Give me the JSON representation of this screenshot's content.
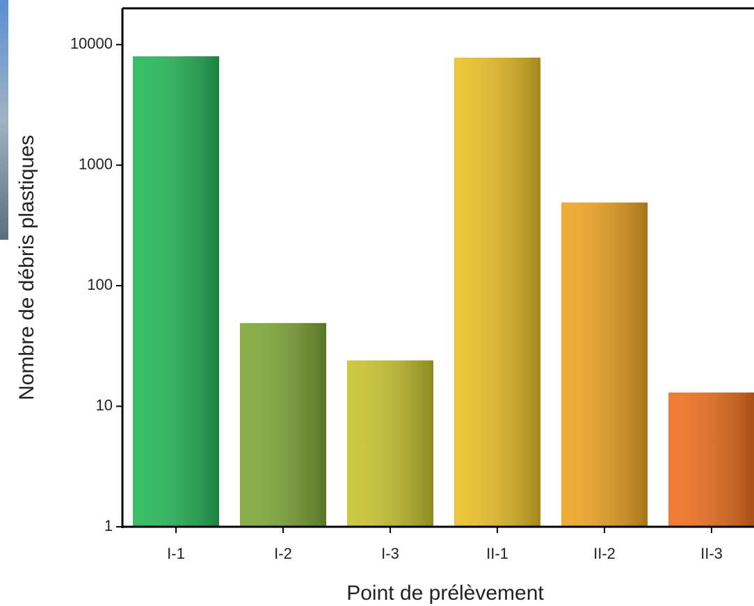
{
  "chart_data": {
    "type": "bar",
    "x_label": "Point de prélèvement",
    "y_label": "Nombre de débris plastiques",
    "categories": [
      "I-1",
      "I-2",
      "I-3",
      "II-1",
      "II-2",
      "II-3"
    ],
    "values": [
      8000,
      49,
      24,
      7800,
      490,
      13
    ],
    "colors": [
      "#27b95a",
      "#7fa837",
      "#c9c42e",
      "#ebc128",
      "#f0a524",
      "#f07020"
    ],
    "y_scale": "log",
    "ylim": [
      1,
      20000
    ],
    "yticks": [
      1,
      10,
      100,
      1000,
      10000
    ],
    "grid": false
  }
}
